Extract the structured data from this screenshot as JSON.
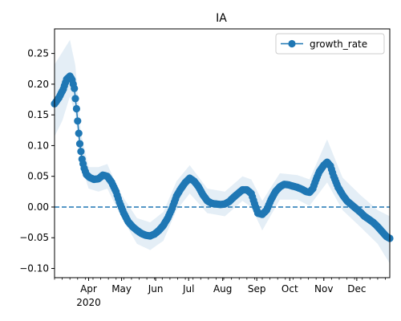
{
  "chart_data": {
    "type": "line",
    "title": "IA",
    "xlabel": "",
    "ylabel": "",
    "xlim": [
      "2020-03-01",
      "2020-12-31"
    ],
    "ylim": [
      -0.115,
      0.29
    ],
    "yticks": [
      0.25,
      0.2,
      0.15,
      0.1,
      0.05,
      0.0,
      -0.05,
      -0.1
    ],
    "ytick_labels": [
      "0.25",
      "0.20",
      "0.15",
      "0.10",
      "0.05",
      "0.00",
      "−0.05",
      "−0.10"
    ],
    "xticks": [
      {
        "date": "2020-04-01",
        "label": "Apr",
        "sublabel": "2020"
      },
      {
        "date": "2020-05-01",
        "label": "May"
      },
      {
        "date": "2020-06-01",
        "label": "Jun"
      },
      {
        "date": "2020-07-01",
        "label": "Jul"
      },
      {
        "date": "2020-08-01",
        "label": "Aug"
      },
      {
        "date": "2020-09-01",
        "label": "Sep"
      },
      {
        "date": "2020-10-01",
        "label": "Oct"
      },
      {
        "date": "2020-11-01",
        "label": "Nov"
      },
      {
        "date": "2020-12-01",
        "label": "Dec"
      }
    ],
    "reference_line": {
      "y": 0.0,
      "style": "dashed"
    },
    "legend": {
      "position": "top-right"
    },
    "series": [
      {
        "name": "growth_rate",
        "color": "#1f77b4",
        "band_color": "#1f77b4",
        "marker": "circle",
        "points": [
          [
            "2020-03-01",
            0.168
          ],
          [
            "2020-03-05",
            0.178
          ],
          [
            "2020-03-09",
            0.192
          ],
          [
            "2020-03-12",
            0.208
          ],
          [
            "2020-03-15",
            0.213
          ],
          [
            "2020-03-17",
            0.207
          ],
          [
            "2020-03-19",
            0.193
          ],
          [
            "2020-03-21",
            0.16
          ],
          [
            "2020-03-22",
            0.14
          ],
          [
            "2020-03-23",
            0.12
          ],
          [
            "2020-03-24",
            0.103
          ],
          [
            "2020-03-26",
            0.078
          ],
          [
            "2020-03-28",
            0.063
          ],
          [
            "2020-03-30",
            0.053
          ],
          [
            "2020-04-02",
            0.048
          ],
          [
            "2020-04-06",
            0.045
          ],
          [
            "2020-04-10",
            0.046
          ],
          [
            "2020-04-14",
            0.052
          ],
          [
            "2020-04-18",
            0.05
          ],
          [
            "2020-04-22",
            0.04
          ],
          [
            "2020-04-26",
            0.025
          ],
          [
            "2020-04-29",
            0.008
          ],
          [
            "2020-05-03",
            -0.01
          ],
          [
            "2020-05-07",
            -0.024
          ],
          [
            "2020-05-11",
            -0.032
          ],
          [
            "2020-05-15",
            -0.038
          ],
          [
            "2020-05-19",
            -0.043
          ],
          [
            "2020-05-23",
            -0.046
          ],
          [
            "2020-05-27",
            -0.047
          ],
          [
            "2020-05-31",
            -0.044
          ],
          [
            "2020-06-04",
            -0.038
          ],
          [
            "2020-06-08",
            -0.03
          ],
          [
            "2020-06-12",
            -0.018
          ],
          [
            "2020-06-16",
            -0.002
          ],
          [
            "2020-06-20",
            0.018
          ],
          [
            "2020-06-24",
            0.03
          ],
          [
            "2020-06-28",
            0.04
          ],
          [
            "2020-07-02",
            0.047
          ],
          [
            "2020-07-06",
            0.042
          ],
          [
            "2020-07-10",
            0.033
          ],
          [
            "2020-07-14",
            0.02
          ],
          [
            "2020-07-18",
            0.01
          ],
          [
            "2020-07-22",
            0.006
          ],
          [
            "2020-07-26",
            0.005
          ],
          [
            "2020-07-30",
            0.004
          ],
          [
            "2020-08-03",
            0.005
          ],
          [
            "2020-08-07",
            0.009
          ],
          [
            "2020-08-11",
            0.016
          ],
          [
            "2020-08-15",
            0.022
          ],
          [
            "2020-08-19",
            0.028
          ],
          [
            "2020-08-23",
            0.028
          ],
          [
            "2020-08-27",
            0.022
          ],
          [
            "2020-08-31",
            0.0
          ],
          [
            "2020-09-02",
            -0.01
          ],
          [
            "2020-09-06",
            -0.012
          ],
          [
            "2020-09-10",
            -0.005
          ],
          [
            "2020-09-14",
            0.012
          ],
          [
            "2020-09-18",
            0.025
          ],
          [
            "2020-09-22",
            0.033
          ],
          [
            "2020-09-26",
            0.037
          ],
          [
            "2020-09-30",
            0.036
          ],
          [
            "2020-10-04",
            0.034
          ],
          [
            "2020-10-08",
            0.032
          ],
          [
            "2020-10-12",
            0.029
          ],
          [
            "2020-10-16",
            0.025
          ],
          [
            "2020-10-19",
            0.024
          ],
          [
            "2020-10-22",
            0.03
          ],
          [
            "2020-10-25",
            0.045
          ],
          [
            "2020-10-28",
            0.058
          ],
          [
            "2020-11-01",
            0.068
          ],
          [
            "2020-11-04",
            0.073
          ],
          [
            "2020-11-07",
            0.067
          ],
          [
            "2020-11-10",
            0.05
          ],
          [
            "2020-11-14",
            0.032
          ],
          [
            "2020-11-18",
            0.02
          ],
          [
            "2020-11-22",
            0.01
          ],
          [
            "2020-11-26",
            0.004
          ],
          [
            "2020-11-30",
            -0.002
          ],
          [
            "2020-12-04",
            -0.008
          ],
          [
            "2020-12-08",
            -0.015
          ],
          [
            "2020-12-12",
            -0.02
          ],
          [
            "2020-12-16",
            -0.025
          ],
          [
            "2020-12-20",
            -0.032
          ],
          [
            "2020-12-24",
            -0.04
          ],
          [
            "2020-12-28",
            -0.048
          ],
          [
            "2020-12-31",
            -0.051
          ]
        ],
        "band": [
          [
            "2020-03-01",
            0.115,
            0.232
          ],
          [
            "2020-03-08",
            0.14,
            0.252
          ],
          [
            "2020-03-15",
            0.18,
            0.272
          ],
          [
            "2020-03-20",
            0.15,
            0.23
          ],
          [
            "2020-03-25",
            0.07,
            0.12
          ],
          [
            "2020-04-01",
            0.03,
            0.065
          ],
          [
            "2020-04-10",
            0.025,
            0.065
          ],
          [
            "2020-04-18",
            0.03,
            0.07
          ],
          [
            "2020-04-29",
            -0.01,
            0.025
          ],
          [
            "2020-05-15",
            -0.06,
            -0.018
          ],
          [
            "2020-05-27",
            -0.07,
            -0.025
          ],
          [
            "2020-06-08",
            -0.055,
            -0.008
          ],
          [
            "2020-06-20",
            -0.005,
            0.042
          ],
          [
            "2020-07-02",
            0.022,
            0.068
          ],
          [
            "2020-07-18",
            -0.01,
            0.03
          ],
          [
            "2020-08-03",
            -0.015,
            0.025
          ],
          [
            "2020-08-19",
            0.01,
            0.05
          ],
          [
            "2020-08-27",
            0.0,
            0.045
          ],
          [
            "2020-09-06",
            -0.038,
            0.01
          ],
          [
            "2020-09-22",
            0.012,
            0.055
          ],
          [
            "2020-10-08",
            0.012,
            0.052
          ],
          [
            "2020-10-19",
            0.002,
            0.045
          ],
          [
            "2020-11-04",
            0.04,
            0.11
          ],
          [
            "2020-11-18",
            -0.005,
            0.048
          ],
          [
            "2020-12-04",
            -0.032,
            0.02
          ],
          [
            "2020-12-20",
            -0.06,
            -0.005
          ],
          [
            "2020-12-31",
            -0.092,
            -0.015
          ]
        ]
      }
    ]
  }
}
